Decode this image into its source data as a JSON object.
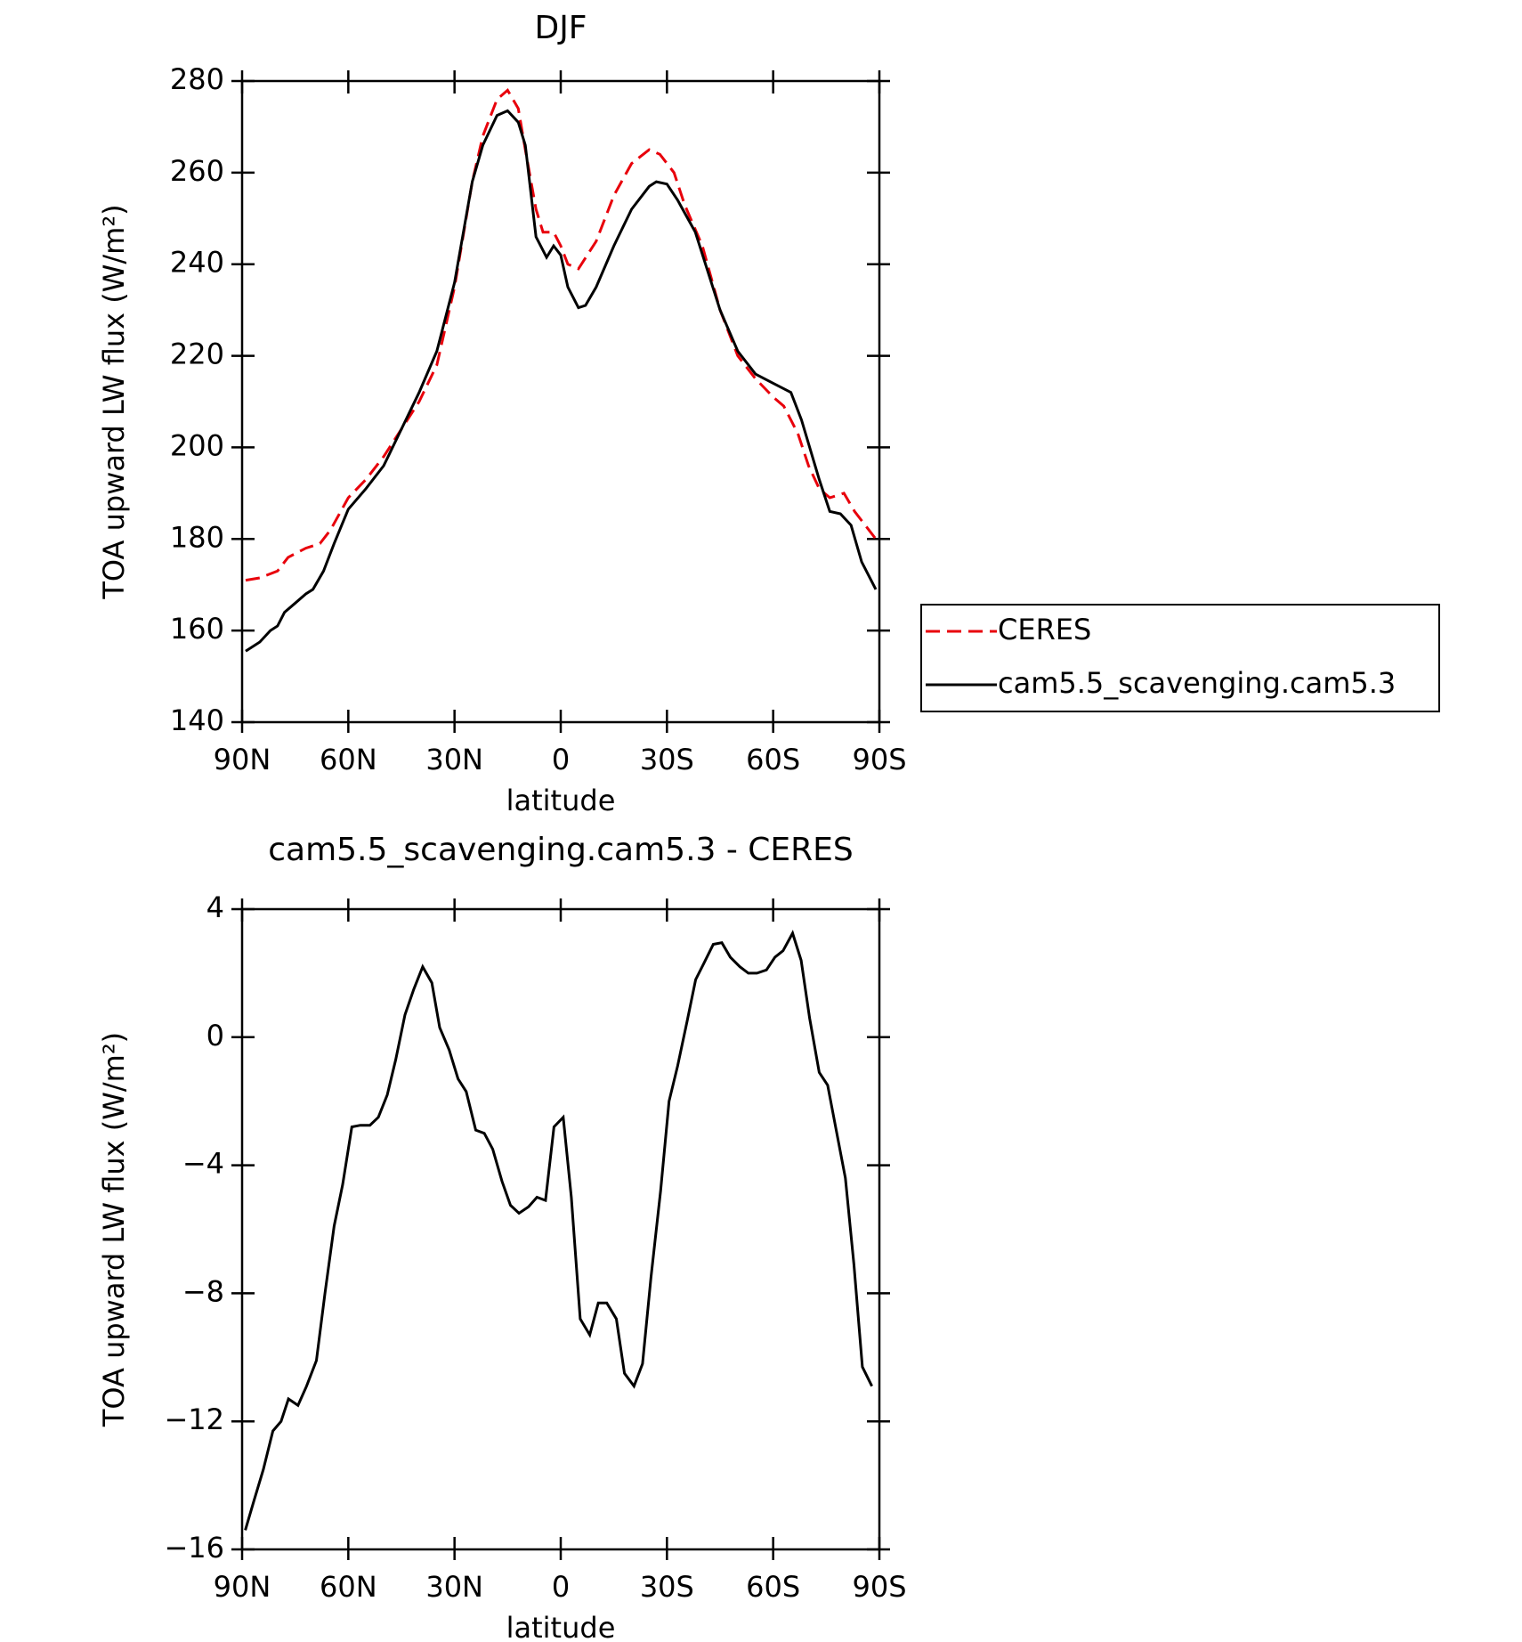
{
  "chart_data": [
    {
      "type": "line",
      "title": "DJF",
      "xlabel": "latitude",
      "ylabel": "TOA upward LW flux (W/m²)",
      "xlim": [
        90,
        -90
      ],
      "xticks": [
        {
          "value": 90,
          "label": "90N"
        },
        {
          "value": 60,
          "label": "60N"
        },
        {
          "value": 30,
          "label": "30N"
        },
        0,
        {
          "value": -30,
          "label": "30S"
        },
        {
          "value": -60,
          "label": "60S"
        },
        {
          "value": -90,
          "label": "90S"
        }
      ],
      "ylim": [
        140,
        280
      ],
      "yticks": [
        140,
        160,
        180,
        200,
        220,
        240,
        260,
        280
      ],
      "legend": "right",
      "series": [
        {
          "name": "CERES",
          "color": "#e8000b",
          "style": "dashed",
          "x": [
            89,
            85,
            80,
            77,
            72,
            68,
            65,
            60,
            55,
            50,
            45,
            40,
            35,
            30,
            25,
            22,
            18,
            15,
            12,
            10,
            7,
            5,
            2,
            0,
            -2,
            -5,
            -10,
            -15,
            -20,
            -25,
            -28,
            -32,
            -35,
            -40,
            -45,
            -50,
            -55,
            -60,
            -63,
            -67,
            -70,
            -73,
            -76,
            -80,
            -83,
            -89
          ],
          "values": [
            171,
            171.5,
            173,
            176,
            178,
            179,
            182,
            189,
            193,
            198,
            204,
            210,
            218,
            235,
            258,
            268,
            276,
            278,
            274,
            265,
            252,
            247,
            247,
            244,
            240,
            239,
            245,
            255,
            262,
            265,
            264,
            260,
            253,
            244,
            230,
            220,
            215,
            211,
            209,
            203,
            196,
            191,
            189,
            190,
            186,
            180
          ]
        },
        {
          "name": "cam5.5_scavenging.cam5.3",
          "color": "#000000",
          "style": "solid",
          "x": [
            89,
            85,
            82,
            80,
            78,
            75,
            72,
            70,
            67,
            64,
            60,
            55,
            50,
            45,
            40,
            35,
            30,
            25,
            22,
            18,
            15,
            12,
            10,
            7,
            4,
            2,
            0,
            -2,
            -5,
            -7,
            -10,
            -15,
            -20,
            -25,
            -27,
            -30,
            -33,
            -38,
            -45,
            -50,
            -55,
            -60,
            -65,
            -68,
            -73,
            -76,
            -79,
            -82,
            -85,
            -89
          ],
          "values": [
            155.5,
            157.5,
            160,
            161,
            164,
            166,
            168,
            169,
            173,
            179,
            186.5,
            191,
            196,
            204,
            212,
            221,
            236,
            258,
            266,
            272.5,
            273.5,
            271,
            266,
            246,
            241.5,
            244,
            242,
            235,
            230.5,
            231,
            235,
            244,
            252,
            257,
            258,
            257.5,
            254,
            247,
            230,
            221,
            216,
            214,
            212,
            206,
            193,
            186,
            185.5,
            183,
            175,
            169
          ]
        }
      ]
    },
    {
      "type": "line",
      "title": "cam5.5_scavenging.cam5.3 - CERES",
      "xlabel": "latitude",
      "ylabel": "TOA upward LW flux (W/m²)",
      "xlim": [
        90,
        -90
      ],
      "xticks": [
        {
          "value": 90,
          "label": "90N"
        },
        {
          "value": 60,
          "label": "60N"
        },
        {
          "value": 30,
          "label": "30N"
        },
        0,
        {
          "value": -30,
          "label": "30S"
        },
        {
          "value": -60,
          "label": "60S"
        },
        {
          "value": -90,
          "label": "90S"
        }
      ],
      "ylim": [
        -16,
        4
      ],
      "yticks": [
        {
          "value": -16,
          "label": "−16"
        },
        {
          "value": -12,
          "label": "−12"
        },
        {
          "value": -8,
          "label": "−8"
        },
        {
          "value": -4,
          "label": "−4"
        },
        0,
        4
      ],
      "series": [
        {
          "color": "#000000",
          "style": "solid",
          "x": [
            89.1,
            86.7,
            84,
            81.3,
            79,
            76.9,
            74.2,
            71.8,
            69,
            66.6,
            64,
            61.6,
            59,
            56.6,
            53.9,
            51.5,
            49,
            46.6,
            44,
            41.5,
            39,
            36.4,
            34.2,
            31.5,
            29,
            26.7,
            24,
            21.6,
            19.2,
            16.6,
            14.2,
            11.8,
            9.1,
            6.7,
            4.3,
            1.9,
            -0.7,
            -3,
            -5.5,
            -8.2,
            -10.6,
            -13,
            -15.7,
            -18,
            -20.7,
            -23.1,
            -25.5,
            -28.2,
            -30.6,
            -33,
            -35.7,
            -38.1,
            -40.4,
            -43.1,
            -45.5,
            -47.9,
            -50.6,
            -53,
            -55.4,
            -58.1,
            -60.5,
            -62.8,
            -65.5,
            -67.9,
            -70.3,
            -73,
            -75.4,
            -77.8,
            -80.4,
            -82.8,
            -85.2,
            -87.9
          ],
          "values": [
            -15.4,
            -14.5,
            -13.5,
            -12.3,
            -12,
            -11.3,
            -11.5,
            -10.9,
            -10.1,
            -8,
            -5.9,
            -4.6,
            -2.8,
            -2.75,
            -2.75,
            -2.5,
            -1.8,
            -0.7,
            0.7,
            1.5,
            2.2,
            1.7,
            0.3,
            -0.4,
            -1.3,
            -1.7,
            -2.9,
            -3,
            -3.5,
            -4.5,
            -5.25,
            -5.5,
            -5.3,
            -5,
            -5.1,
            -2.8,
            -2.5,
            -5,
            -8.8,
            -9.3,
            -8.3,
            -8.3,
            -8.8,
            -10.5,
            -10.9,
            -10.2,
            -7.5,
            -4.8,
            -2,
            -0.9,
            0.5,
            1.8,
            2.3,
            2.9,
            2.95,
            2.5,
            2.2,
            2,
            2,
            2.1,
            2.5,
            2.7,
            3.25,
            2.4,
            0.6,
            -1.1,
            -1.5,
            -2.9,
            -4.4,
            -7.1,
            -10.3,
            -10.9
          ]
        }
      ]
    }
  ]
}
